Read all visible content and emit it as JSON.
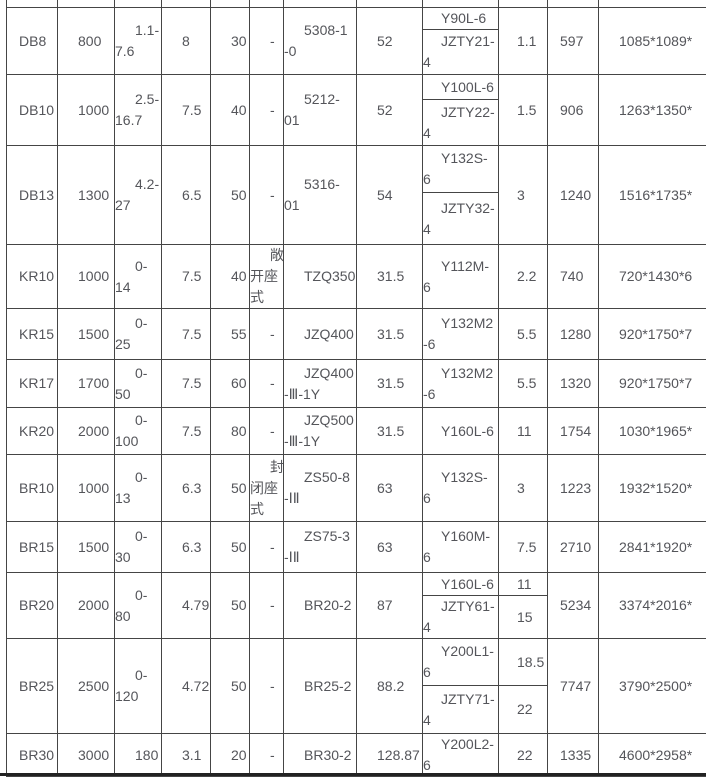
{
  "colors": {
    "border": "#454545",
    "text": "#54555a",
    "bottom_rule": "#222222",
    "background": "#ffffff"
  },
  "table": {
    "rows": [
      {
        "model": "DB8",
        "cells": [
          "800",
          "1.1-\n7.6",
          "8",
          "30",
          "-",
          "5308-1\n-0",
          "52"
        ],
        "motor": [
          "Y90L-6",
          "JZTY21-\n4"
        ],
        "power": [
          "1.1"
        ],
        "weight": "597",
        "dim": "1085*1089*"
      },
      {
        "model": "DB10",
        "cells": [
          "1000",
          "2.5-\n16.7",
          "7.5",
          "40",
          "-",
          "5212-\n01",
          "52"
        ],
        "motor": [
          "Y100L-6",
          "JZTY22-\n4"
        ],
        "power": [
          "1.5"
        ],
        "weight": "906",
        "dim": "1263*1350*"
      },
      {
        "model": "DB13",
        "cells": [
          "1300",
          "4.2-\n27",
          "6.5",
          "50",
          "-",
          "5316-\n01",
          "54"
        ],
        "motor": [
          "Y132S-\n6",
          "JZTY32-\n4"
        ],
        "power": [
          "3"
        ],
        "weight": "1240",
        "dim": "1516*1735*"
      },
      {
        "model": "KR10",
        "cells": [
          "1000",
          "0-\n14",
          "7.5",
          "40",
          "敞\n开座\n式",
          "TZQ350",
          "31.5"
        ],
        "motor": [
          "Y112M-\n6"
        ],
        "power": [
          "2.2"
        ],
        "weight": "740",
        "dim": "720*1430*6"
      },
      {
        "model": "KR15",
        "cells": [
          "1500",
          "0-\n25",
          "7.5",
          "55",
          "-",
          "JZQ400",
          "31.5"
        ],
        "motor": [
          "Y132M2\n-6"
        ],
        "power": [
          "5.5"
        ],
        "weight": "1280",
        "dim": "920*1750*7"
      },
      {
        "model": "KR17",
        "cells": [
          "1700",
          "0-\n50",
          "7.5",
          "60",
          "-",
          "JZQ400\n-Ⅲ-1Y",
          "31.5"
        ],
        "motor": [
          "Y132M2\n-6"
        ],
        "power": [
          "5.5"
        ],
        "weight": "1320",
        "dim": "920*1750*7"
      },
      {
        "model": "KR20",
        "cells": [
          "2000",
          "0-\n100",
          "7.5",
          "80",
          "-",
          "JZQ500\n-Ⅲ-1Y",
          "31.5"
        ],
        "motor": [
          "Y160L-6"
        ],
        "power": [
          "11"
        ],
        "weight": "1754",
        "dim": "1030*1965*"
      },
      {
        "model": "BR10",
        "cells": [
          "1000",
          "0-\n13",
          "6.3",
          "50",
          "封\n闭座\n式",
          "ZS50-8\n-ⅠⅡ",
          "63"
        ],
        "motor": [
          "Y132S-\n6"
        ],
        "power": [
          "3"
        ],
        "weight": "1223",
        "dim": "1932*1520*"
      },
      {
        "model": "BR15",
        "cells": [
          "1500",
          "0-\n30",
          "6.3",
          "50",
          "-",
          "ZS75-3\n-ⅠⅡ",
          "63"
        ],
        "motor": [
          "Y160M-\n6"
        ],
        "power": [
          "7.5"
        ],
        "weight": "2710",
        "dim": "2841*1920*"
      },
      {
        "model": "BR20",
        "cells": [
          "2000",
          "0-\n80",
          "4.79",
          "50",
          "-",
          "BR20-2",
          "87"
        ],
        "motor": [
          "Y160L-6",
          "JZTY61-\n4"
        ],
        "power": [
          "11",
          "15"
        ],
        "weight": "5234",
        "dim": "3374*2016*"
      },
      {
        "model": "BR25",
        "cells": [
          "2500",
          "0-\n120",
          "4.72",
          "50",
          "-",
          "BR25-2",
          "88.2"
        ],
        "motor": [
          "Y200L1-\n6",
          "JZTY71-\n4"
        ],
        "power": [
          "18.5",
          "22"
        ],
        "weight": "7747",
        "dim": "3790*2500*"
      },
      {
        "model": "BR30",
        "cells": [
          "3000",
          "180",
          "3.1",
          "20",
          "-",
          "BR30-2",
          "128.87"
        ],
        "motor": [
          "Y200L2-\n6"
        ],
        "power": [
          "22"
        ],
        "weight": "1335",
        "dim": "4600*2958*"
      }
    ]
  }
}
